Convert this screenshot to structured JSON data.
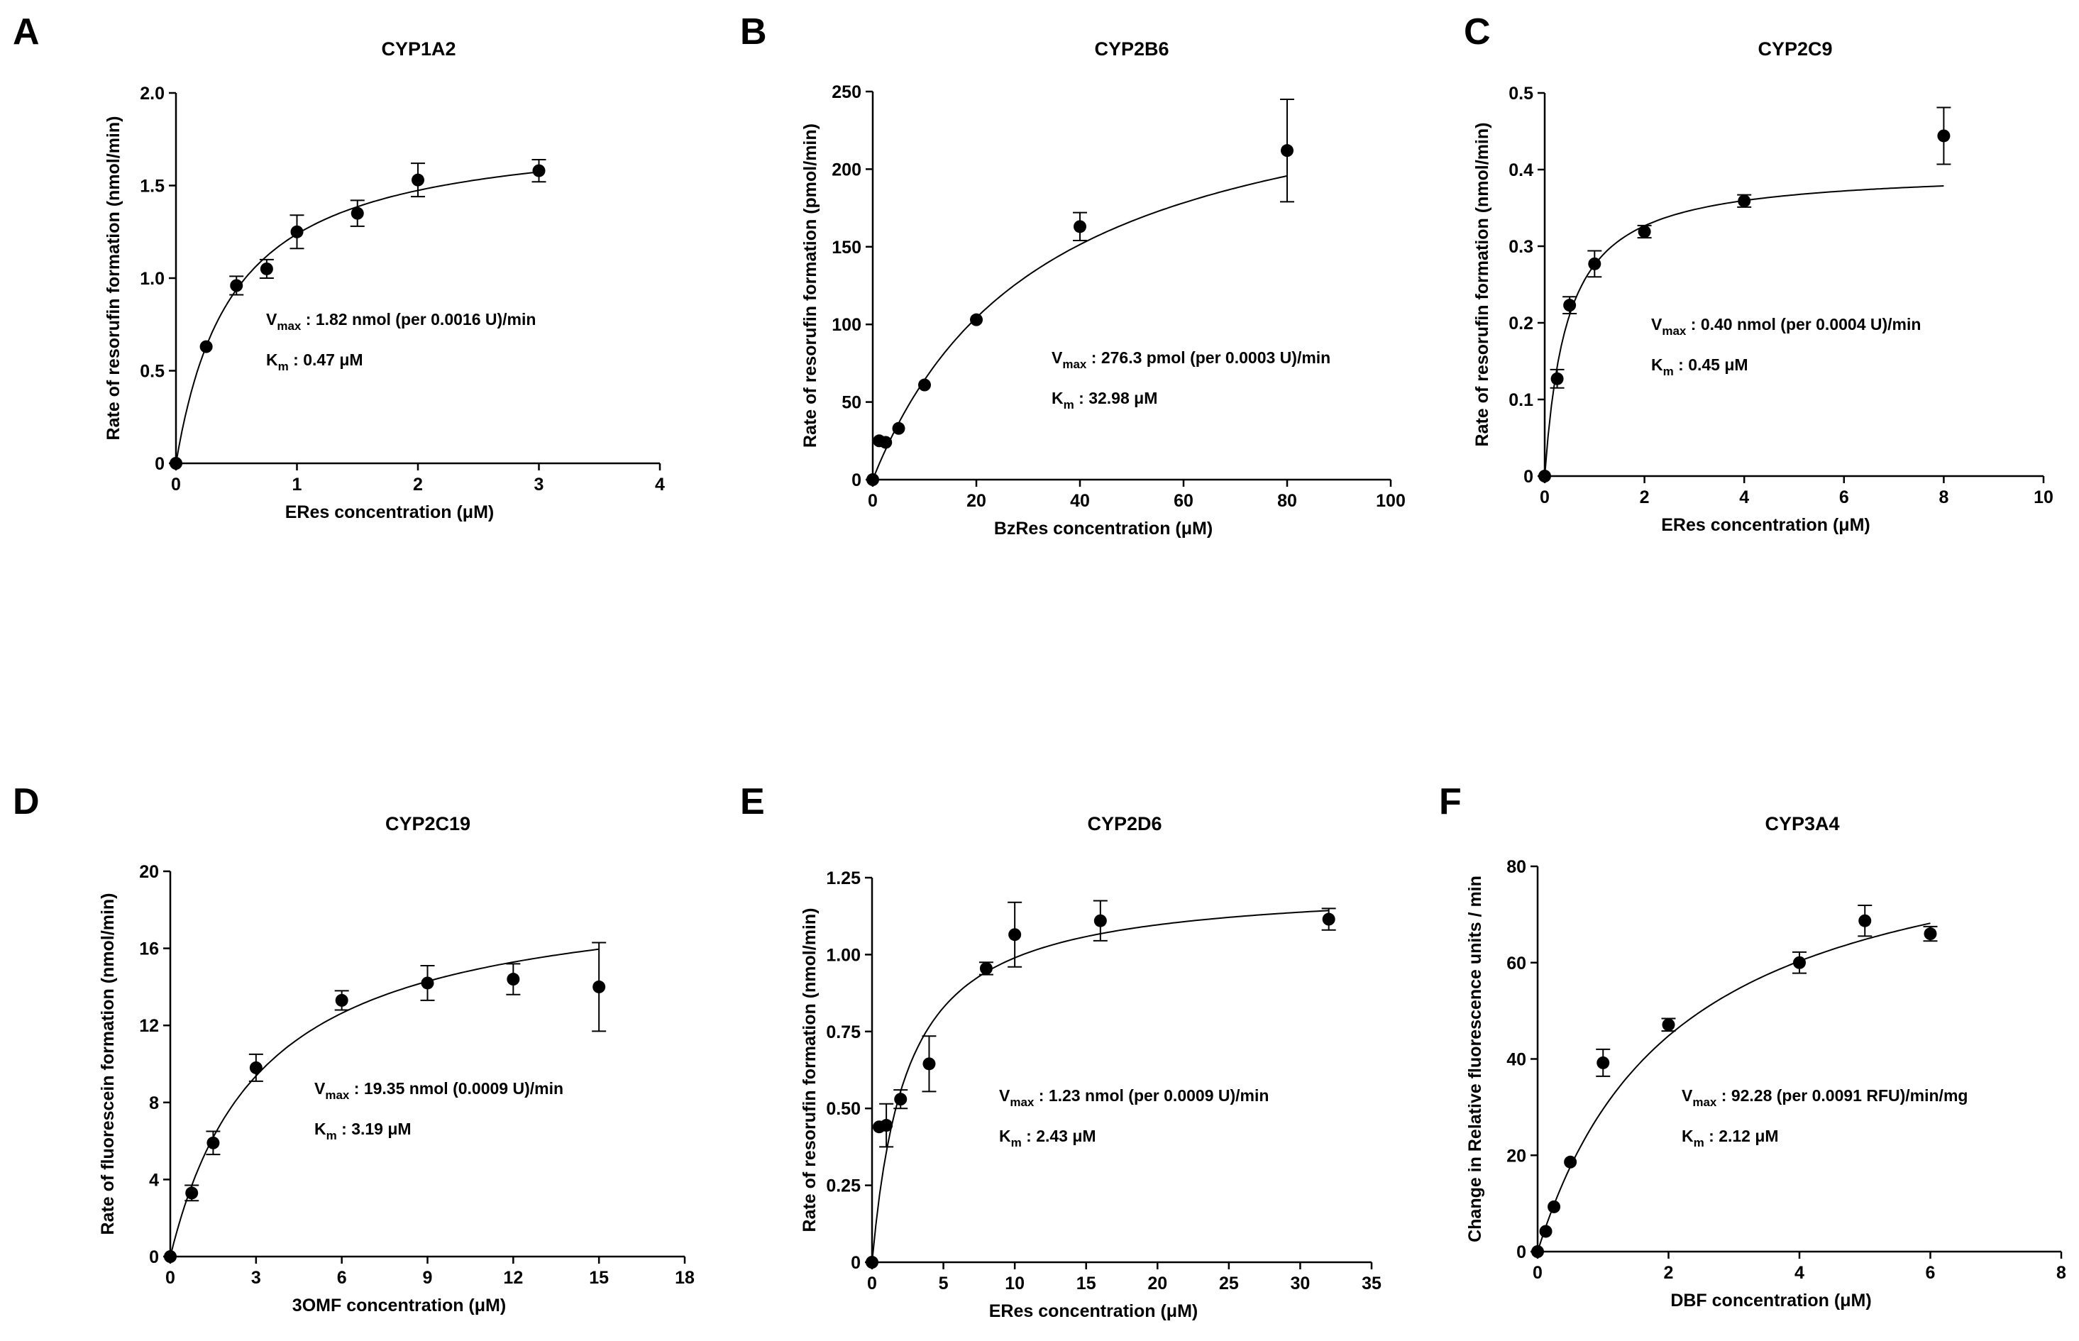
{
  "chart_data": [
    {
      "panel": "A",
      "type": "scatter",
      "title": "CYP1A2",
      "xlabel": "ERes concentration (μM)",
      "ylabel": "Rate of resorufin formation (nmol/min)",
      "xlim": [
        0,
        4
      ],
      "ylim": [
        0,
        2.0
      ],
      "xticks": [
        0,
        1,
        2,
        3,
        4
      ],
      "xtick_labels": [
        "0",
        "1",
        "2",
        "3",
        "4"
      ],
      "yticks": [
        0,
        0.5,
        1.0,
        1.5,
        2.0
      ],
      "ytick_labels": [
        "0",
        "0.5",
        "1.0",
        "1.5",
        "2.0"
      ],
      "grid": false,
      "series": [
        {
          "x": [
            0,
            0.25,
            0.5,
            0.75,
            1.0,
            1.5,
            2.0,
            3.0
          ],
          "y": [
            0,
            0.63,
            0.96,
            1.05,
            1.25,
            1.35,
            1.53,
            1.58
          ],
          "err": [
            0,
            0,
            0.05,
            0.05,
            0.09,
            0.07,
            0.09,
            0.06
          ]
        }
      ],
      "fit": {
        "model": "Michaelis-Menten",
        "vmax": 1.82,
        "km": 0.47
      },
      "annotation": {
        "vmax_prefix": "V",
        "vmax_sub": "max",
        "vmax_text": " : 1.82 nmol (per 0.0016 U)/min",
        "km_prefix": "K",
        "km_sub": "m",
        "km_text": " : 0.47 μM"
      }
    },
    {
      "panel": "B",
      "type": "scatter",
      "title": "CYP2B6",
      "xlabel": "BzRes concentration (μM)",
      "ylabel": "Rate of resorufin formation (pmol/min)",
      "xlim": [
        0,
        100
      ],
      "ylim": [
        0,
        250
      ],
      "xticks": [
        0,
        20,
        40,
        60,
        80,
        100
      ],
      "xtick_labels": [
        "0",
        "20",
        "40",
        "60",
        "80",
        "100"
      ],
      "yticks": [
        0,
        50,
        100,
        150,
        200,
        250
      ],
      "ytick_labels": [
        "0",
        "50",
        "100",
        "150",
        "200",
        "250"
      ],
      "grid": false,
      "series": [
        {
          "x": [
            0,
            1.25,
            2.5,
            5,
            10,
            20,
            40,
            80
          ],
          "y": [
            0,
            25,
            24,
            33,
            61,
            103,
            163,
            212
          ],
          "err": [
            0,
            0,
            0,
            0,
            0,
            0,
            9,
            33
          ]
        }
      ],
      "fit": {
        "model": "Michaelis-Menten",
        "vmax": 276.3,
        "km": 32.98
      },
      "annotation": {
        "vmax_prefix": "V",
        "vmax_sub": "max",
        "vmax_text": " : 276.3 pmol (per 0.0003 U)/min",
        "km_prefix": "K",
        "km_sub": "m",
        "km_text": " : 32.98 μM"
      }
    },
    {
      "panel": "C",
      "type": "scatter",
      "title": "CYP2C9",
      "xlabel": "ERes concentration (μM)",
      "ylabel": "Rate of resorufin formation (nmol/min)",
      "xlim": [
        0,
        10
      ],
      "ylim": [
        0,
        0.5
      ],
      "xticks": [
        0,
        2,
        4,
        6,
        8,
        10
      ],
      "xtick_labels": [
        "0",
        "2",
        "4",
        "6",
        "8",
        "10"
      ],
      "yticks": [
        0,
        0.1,
        0.2,
        0.3,
        0.4,
        0.5
      ],
      "ytick_labels": [
        "0",
        "0.1",
        "0.2",
        "0.3",
        "0.4",
        "0.5"
      ],
      "grid": false,
      "series": [
        {
          "x": [
            0,
            0.25,
            0.5,
            1,
            2,
            4,
            8
          ],
          "y": [
            0,
            0.127,
            0.223,
            0.277,
            0.319,
            0.359,
            0.444
          ],
          "err": [
            0,
            0.012,
            0.011,
            0.017,
            0.008,
            0.008,
            0.037
          ]
        }
      ],
      "fit": {
        "model": "Michaelis-Menten",
        "vmax": 0.4,
        "km": 0.45
      },
      "annotation": {
        "vmax_prefix": "V",
        "vmax_sub": "max",
        "vmax_text": " : 0.40 nmol (per 0.0004 U)/min",
        "km_prefix": "K",
        "km_sub": "m",
        "km_text": " : 0.45 μM"
      }
    },
    {
      "panel": "D",
      "type": "scatter",
      "title": "CYP2C19",
      "xlabel": "3OMF concentration (μM)",
      "ylabel": "Rate of fluorescein formation (nmol/min)",
      "xlim": [
        0,
        18
      ],
      "ylim": [
        0,
        20
      ],
      "xticks": [
        0,
        3,
        6,
        9,
        12,
        15,
        18
      ],
      "xtick_labels": [
        "0",
        "3",
        "6",
        "9",
        "12",
        "15",
        "18"
      ],
      "yticks": [
        0,
        4,
        8,
        12,
        16,
        20
      ],
      "ytick_labels": [
        "0",
        "4",
        "8",
        "12",
        "16",
        "20"
      ],
      "grid": false,
      "series": [
        {
          "x": [
            0,
            0.75,
            1.5,
            3,
            6,
            9,
            12,
            15
          ],
          "y": [
            0,
            3.3,
            5.9,
            9.8,
            13.3,
            14.2,
            14.4,
            14.0
          ],
          "err": [
            0,
            0.4,
            0.6,
            0.7,
            0.5,
            0.9,
            0.8,
            2.3
          ]
        }
      ],
      "fit": {
        "model": "Michaelis-Menten",
        "vmax": 19.35,
        "km": 3.19
      },
      "annotation": {
        "vmax_prefix": "V",
        "vmax_sub": "max",
        "vmax_text": " : 19.35 nmol (0.0009 U)/min",
        "km_prefix": "K",
        "km_sub": "m",
        "km_text": " : 3.19 μM"
      }
    },
    {
      "panel": "E",
      "type": "scatter",
      "title": "CYP2D6",
      "xlabel": "ERes concentration (μM)",
      "ylabel": "Rate of resorufin formation (nmol/min)",
      "xlim": [
        0,
        35
      ],
      "ylim": [
        0,
        1.25
      ],
      "xticks": [
        0,
        5,
        10,
        15,
        20,
        25,
        30,
        35
      ],
      "xtick_labels": [
        "0",
        "5",
        "10",
        "15",
        "20",
        "25",
        "30",
        "35"
      ],
      "yticks": [
        0,
        0.25,
        0.5,
        0.75,
        1.0,
        1.25
      ],
      "ytick_labels": [
        "0",
        "0.25",
        "0.50",
        "0.75",
        "1.00",
        "1.25"
      ],
      "grid": false,
      "series": [
        {
          "x": [
            0,
            0.5,
            1,
            2,
            4,
            8,
            10,
            16,
            32
          ],
          "y": [
            0,
            0.44,
            0.445,
            0.53,
            0.645,
            0.955,
            1.065,
            1.11,
            1.115
          ],
          "err": [
            0,
            0,
            0.07,
            0.03,
            0.09,
            0.02,
            0.105,
            0.065,
            0.035
          ]
        }
      ],
      "fit": {
        "model": "Michaelis-Menten",
        "vmax": 1.23,
        "km": 2.43
      },
      "annotation": {
        "vmax_prefix": "V",
        "vmax_sub": "max",
        "vmax_text": " : 1.23 nmol  (per 0.0009 U)/min",
        "km_prefix": "K",
        "km_sub": "m",
        "km_text": " : 2.43 μM"
      }
    },
    {
      "panel": "F",
      "type": "scatter",
      "title": "CYP3A4",
      "xlabel": "DBF concentration (μM)",
      "ylabel": "Change in Relative fluorescence units / min",
      "xlim": [
        0,
        8
      ],
      "ylim": [
        0,
        80
      ],
      "xticks": [
        0,
        2,
        4,
        6,
        8
      ],
      "xtick_labels": [
        "0",
        "2",
        "4",
        "6",
        "8"
      ],
      "yticks": [
        0,
        20,
        40,
        60,
        80
      ],
      "ytick_labels": [
        "0",
        "20",
        "40",
        "60",
        "80"
      ],
      "grid": false,
      "series": [
        {
          "x": [
            0,
            0.125,
            0.25,
            0.5,
            1,
            2,
            4,
            5,
            6
          ],
          "y": [
            0,
            4.2,
            9.3,
            18.6,
            39.2,
            47.1,
            60.0,
            68.7,
            66.0
          ],
          "err": [
            0,
            0,
            0,
            0,
            2.8,
            1.3,
            2.2,
            3.2,
            1.5
          ]
        }
      ],
      "fit": {
        "model": "Michaelis-Menten",
        "vmax": 92.28,
        "km": 2.12
      },
      "annotation": {
        "vmax_prefix": "V",
        "vmax_sub": "max",
        "vmax_text": " : 92.28 (per 0.0091 RFU)/min/mg",
        "km_prefix": "K",
        "km_sub": "m",
        "km_text": " : 2.12 μM"
      }
    }
  ]
}
